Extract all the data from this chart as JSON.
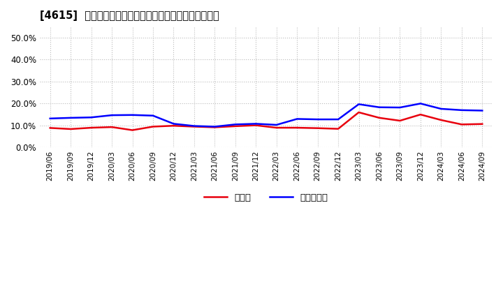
{
  "title": "[4615]  現預金、有利子負債の総資産に対する比率の推移",
  "x_labels": [
    "2019/06",
    "2019/09",
    "2019/12",
    "2020/03",
    "2020/06",
    "2020/09",
    "2020/12",
    "2021/03",
    "2021/06",
    "2021/09",
    "2021/12",
    "2022/03",
    "2022/06",
    "2022/09",
    "2022/12",
    "2023/03",
    "2023/06",
    "2023/09",
    "2023/12",
    "2024/03",
    "2024/06",
    "2024/09"
  ],
  "cash": [
    0.089,
    0.084,
    0.09,
    0.093,
    0.079,
    0.095,
    0.099,
    0.095,
    0.092,
    0.097,
    0.101,
    0.09,
    0.09,
    0.088,
    0.085,
    0.16,
    0.135,
    0.122,
    0.15,
    0.125,
    0.105,
    0.107
  ],
  "debt": [
    0.132,
    0.135,
    0.137,
    0.147,
    0.148,
    0.145,
    0.108,
    0.098,
    0.095,
    0.105,
    0.108,
    0.103,
    0.13,
    0.128,
    0.128,
    0.197,
    0.183,
    0.182,
    0.2,
    0.176,
    0.17,
    0.168
  ],
  "cash_color": "#e8000d",
  "debt_color": "#0000ff",
  "background_color": "#ffffff",
  "plot_bg_color": "#ffffff",
  "grid_color": "#aaaaaa",
  "ylim": [
    0.0,
    0.55
  ],
  "yticks": [
    0.0,
    0.1,
    0.2,
    0.3,
    0.4,
    0.5
  ],
  "legend_cash": "現預金",
  "legend_debt": "有利子負債"
}
